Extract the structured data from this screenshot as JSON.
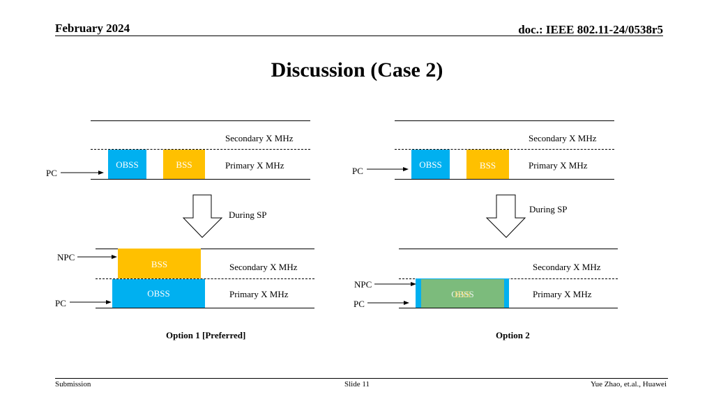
{
  "header": {
    "date": "February 2024",
    "doc": "doc.: IEEE 802.11-24/0538r5"
  },
  "title": "Discussion (Case 2)",
  "labels": {
    "secondary": "Secondary X MHz",
    "primary": "Primary X MHz",
    "pc": "PC",
    "npc": "NPC",
    "obss": "OBSS",
    "bss": "BSS",
    "during_sp": "During SP"
  },
  "options": {
    "option1": "Option 1 [Preferred]",
    "option2": "Option 2"
  },
  "footer": {
    "left": "Submission",
    "center": "Slide 11",
    "right": "Yue Zhao, et.al., Huawei"
  },
  "colors": {
    "obss": "#00b0f0",
    "bss": "#ffc000",
    "overlap": "#7cbb7c"
  }
}
